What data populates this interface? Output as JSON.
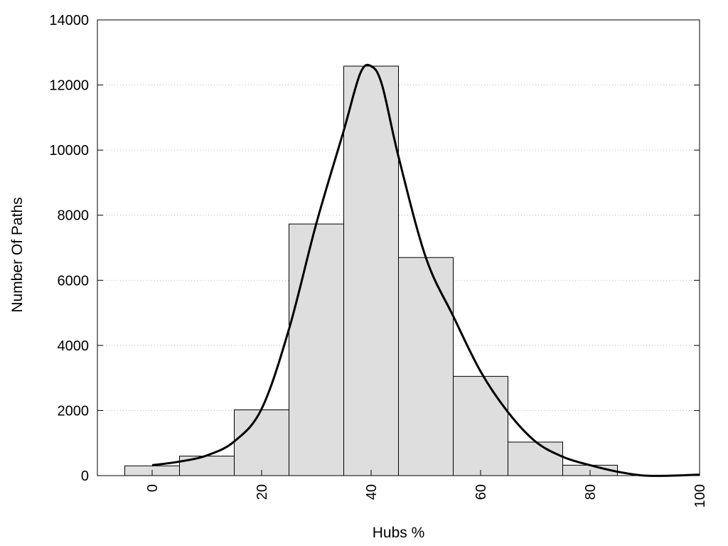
{
  "chart_data": {
    "type": "bar",
    "title": "",
    "xlabel": "Hubs %",
    "ylabel": "Number Of Paths",
    "xlim": [
      -10,
      100
    ],
    "ylim": [
      0,
      14000
    ],
    "grid": "horizontal-dotted",
    "bin_width": 10,
    "bins": [
      {
        "center": 0,
        "value": 300
      },
      {
        "center": 10,
        "value": 600
      },
      {
        "center": 20,
        "value": 2020
      },
      {
        "center": 30,
        "value": 7730
      },
      {
        "center": 40,
        "value": 12580
      },
      {
        "center": 50,
        "value": 6700
      },
      {
        "center": 60,
        "value": 3050
      },
      {
        "center": 70,
        "value": 1030
      },
      {
        "center": 80,
        "value": 320
      }
    ],
    "x_ticks": [
      0,
      20,
      40,
      60,
      80,
      100
    ],
    "y_ticks": [
      0,
      2000,
      4000,
      6000,
      8000,
      10000,
      12000,
      14000
    ],
    "curve": {
      "x": [
        0,
        5,
        10,
        15,
        20,
        25,
        30,
        35,
        38,
        40,
        42,
        45,
        50,
        55,
        60,
        65,
        70,
        75,
        80,
        85,
        90,
        95,
        100
      ],
      "y": [
        320,
        430,
        620,
        1050,
        2050,
        4500,
        7750,
        10600,
        12350,
        12580,
        12000,
        9800,
        6700,
        4900,
        3200,
        1950,
        1050,
        580,
        320,
        120,
        0,
        0,
        30
      ]
    },
    "colors": {
      "bar_fill": "#dedede",
      "bar_stroke": "#000000",
      "curve": "#000000",
      "grid": "#bbbbbb"
    }
  }
}
